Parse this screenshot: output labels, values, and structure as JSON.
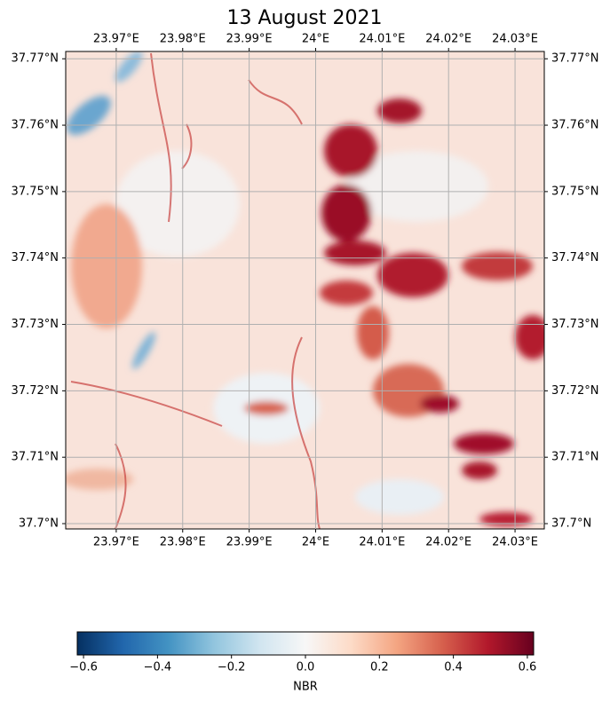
{
  "chart_data": {
    "type": "map",
    "title": "13 August 2021",
    "xlim": [
      23.9624,
      24.0344
    ],
    "ylim": [
      37.6992,
      37.7711
    ],
    "xticks": [
      {
        "value": 23.97,
        "label": "23.97°E"
      },
      {
        "value": 23.98,
        "label": "23.98°E"
      },
      {
        "value": 23.99,
        "label": "23.99°E"
      },
      {
        "value": 24.0,
        "label": "24°E"
      },
      {
        "value": 24.01,
        "label": "24.01°E"
      },
      {
        "value": 24.02,
        "label": "24.02°E"
      },
      {
        "value": 24.03,
        "label": "24.03°E"
      }
    ],
    "yticks": [
      {
        "value": 37.7,
        "label": "37.7°N"
      },
      {
        "value": 37.71,
        "label": "37.71°N"
      },
      {
        "value": 37.72,
        "label": "37.72°N"
      },
      {
        "value": 37.73,
        "label": "37.73°N"
      },
      {
        "value": 37.74,
        "label": "37.74°N"
      },
      {
        "value": 37.75,
        "label": "37.75°N"
      },
      {
        "value": 37.76,
        "label": "37.76°N"
      },
      {
        "value": 37.77,
        "label": "37.77°N"
      }
    ],
    "grid": true,
    "colorbar": {
      "label": "NBR",
      "lim": [
        -0.617,
        0.617
      ],
      "ticks": [
        {
          "value": -0.6,
          "label": "−0.6"
        },
        {
          "value": -0.4,
          "label": "−0.4"
        },
        {
          "value": -0.2,
          "label": "−0.2"
        },
        {
          "value": 0.0,
          "label": "0.0"
        },
        0.2,
        0.4,
        0.6
      ]
    }
  }
}
